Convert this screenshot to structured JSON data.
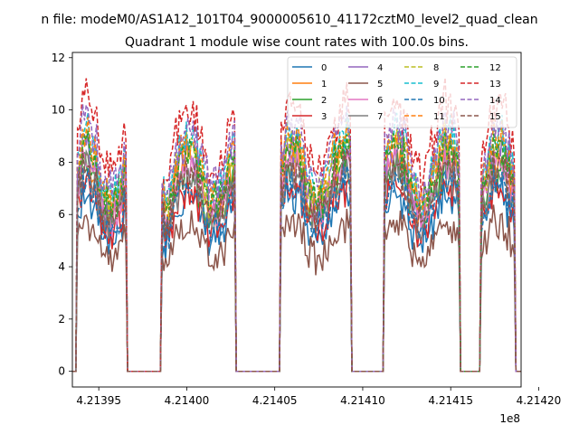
{
  "chart_data": {
    "type": "line",
    "suptitle": "n file: modeM0/AS1A12_101T04_9000005610_41172cztM0_level2_quad_clean",
    "title": "Quadrant 1 module wise count rates with 100.0s bins.",
    "xlabel": "",
    "ylabel": "",
    "x_offset_label": "1e8",
    "xlim": [
      4.213935,
      4.21419
    ],
    "ylim": [
      -0.6,
      12.2
    ],
    "x_ticks": [
      4.21395,
      4.214,
      4.21405,
      4.2141,
      4.21415,
      4.2142
    ],
    "x_tick_labels": [
      "4.21395",
      "4.21400",
      "4.21405",
      "4.21410",
      "4.21415",
      "4.21420"
    ],
    "y_ticks": [
      0,
      2,
      4,
      6,
      8,
      10,
      12
    ],
    "y_tick_labels": [
      "0",
      "2",
      "4",
      "6",
      "8",
      "10",
      "12"
    ],
    "grid": false,
    "legend_position": "top-right",
    "legend_columns": 4,
    "active_intervals": [
      [
        4.213937,
        4.213966
      ],
      [
        4.213986,
        4.214028
      ],
      [
        4.214053,
        4.214093
      ],
      [
        4.214112,
        4.214155
      ],
      [
        4.214167,
        4.214187
      ]
    ],
    "series_levels": [
      6.2,
      7.5,
      7.1,
      6.5,
      7.8,
      5.2,
      7.3,
      6.9,
      8.0,
      8.4,
      6.6,
      8.2,
      7.9,
      9.4,
      8.7,
      7.2
    ],
    "series": [
      {
        "name": "0",
        "color": "#1f77b4",
        "style": "solid"
      },
      {
        "name": "1",
        "color": "#ff7f0e",
        "style": "solid"
      },
      {
        "name": "2",
        "color": "#2ca02c",
        "style": "solid"
      },
      {
        "name": "3",
        "color": "#d62728",
        "style": "solid"
      },
      {
        "name": "4",
        "color": "#9467bd",
        "style": "solid"
      },
      {
        "name": "5",
        "color": "#8c564b",
        "style": "solid"
      },
      {
        "name": "6",
        "color": "#e377c2",
        "style": "solid"
      },
      {
        "name": "7",
        "color": "#7f7f7f",
        "style": "solid"
      },
      {
        "name": "8",
        "color": "#bcbd22",
        "style": "dashed"
      },
      {
        "name": "9",
        "color": "#17becf",
        "style": "dashed"
      },
      {
        "name": "10",
        "color": "#1f77b4",
        "style": "dashed"
      },
      {
        "name": "11",
        "color": "#ff7f0e",
        "style": "dashed"
      },
      {
        "name": "12",
        "color": "#2ca02c",
        "style": "dashed"
      },
      {
        "name": "13",
        "color": "#d62728",
        "style": "dashed"
      },
      {
        "name": "14",
        "color": "#9467bd",
        "style": "dashed"
      },
      {
        "name": "15",
        "color": "#8c564b",
        "style": "dashed"
      }
    ]
  }
}
